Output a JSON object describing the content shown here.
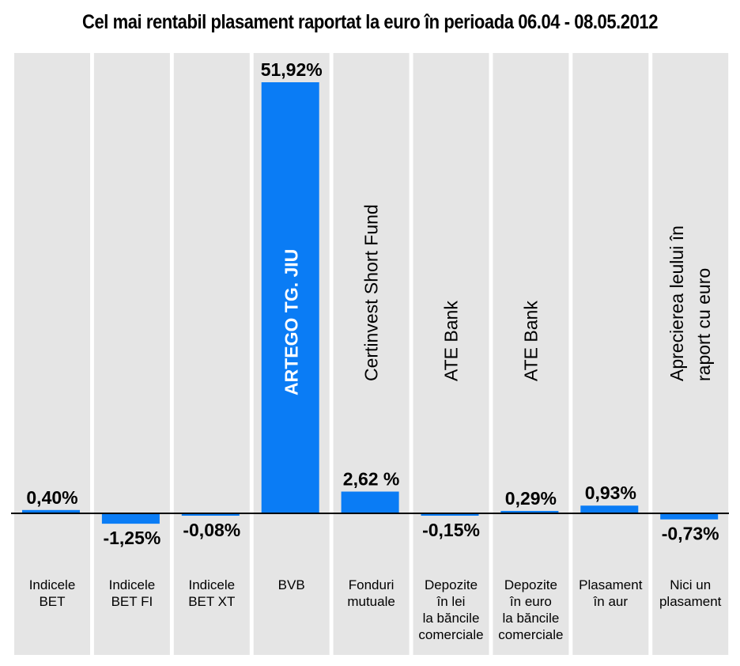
{
  "chart_data": {
    "type": "bar",
    "title": "Cel mai rentabil plasament raportat la euro în perioada 06.04 - 08.05.2012",
    "categories": [
      [
        "Indicele",
        "BET"
      ],
      [
        "Indicele",
        "BET FI"
      ],
      [
        "Indicele",
        "BET XT"
      ],
      [
        "BVB"
      ],
      [
        "Fonduri",
        "mutuale"
      ],
      [
        "Depozite",
        "în lei",
        "la băncile",
        "comerciale"
      ],
      [
        "Depozite",
        "în euro",
        "la băncile",
        "comerciale"
      ],
      [
        "Plasament",
        "în aur"
      ],
      [
        "Nici un",
        "plasament"
      ]
    ],
    "values": [
      0.4,
      -1.25,
      -0.08,
      51.92,
      2.62,
      -0.15,
      0.29,
      0.93,
      -0.73
    ],
    "value_labels": [
      "0,40%",
      "-1,25%",
      "-0,08%",
      "51,92%",
      "2,62 %",
      "-0,15%",
      "0,29%",
      "0,93%",
      "-0,73%"
    ],
    "annotations": [
      [
        "",
        ""
      ],
      [
        "",
        ""
      ],
      [
        "",
        ""
      ],
      [
        "ARTEGO TG. JIU",
        ""
      ],
      [
        "Certinvest  Short  Fund",
        ""
      ],
      [
        "ATE  Bank",
        ""
      ],
      [
        "ATE  Bank",
        ""
      ],
      [
        "",
        ""
      ],
      [
        "Aprecierea leului în",
        "raport cu euro"
      ]
    ],
    "ylim": [
      -2.6,
      51.92
    ],
    "grid": false,
    "colors": {
      "bar": "#0a7cf5",
      "panel": "#e5e5e5",
      "baseline": "#000000",
      "text": "#000000",
      "text_on_bar": "#ffffff"
    }
  }
}
